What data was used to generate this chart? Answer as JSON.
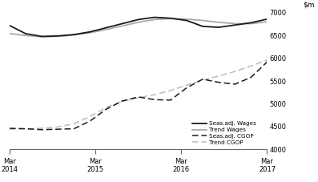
{
  "ylim": [
    4000,
    7000
  ],
  "yticks": [
    4000,
    4500,
    5000,
    5500,
    6000,
    6500,
    7000
  ],
  "xlim": [
    0,
    12
  ],
  "xtick_positions": [
    0,
    4,
    8,
    12
  ],
  "xtick_labels": [
    "Mar\n2014",
    "Mar\n2015",
    "Mar\n2016",
    "Mar\n2017"
  ],
  "seas_adj_wages": [
    6720,
    6540,
    6480,
    6490,
    6520,
    6580,
    6670,
    6760,
    6850,
    6900,
    6880,
    6830,
    6700,
    6680,
    6730,
    6780,
    6860
  ],
  "trend_wages": [
    6540,
    6500,
    6470,
    6480,
    6510,
    6560,
    6630,
    6710,
    6790,
    6850,
    6870,
    6860,
    6830,
    6790,
    6760,
    6760,
    6800
  ],
  "seas_adj_cgop": [
    4460,
    4450,
    4430,
    4440,
    4450,
    4620,
    4880,
    5060,
    5150,
    5090,
    5080,
    5350,
    5540,
    5470,
    5430,
    5580,
    5920
  ],
  "trend_cgop": [
    4440,
    4450,
    4460,
    4490,
    4560,
    4720,
    4920,
    5050,
    5130,
    5200,
    5290,
    5410,
    5520,
    5610,
    5710,
    5830,
    5960
  ],
  "x_vals": [
    0,
    0.75,
    1.5,
    2.25,
    3,
    3.75,
    4.5,
    5.25,
    6,
    6.75,
    7.5,
    8.25,
    9,
    9.75,
    10.5,
    11.25,
    12
  ],
  "color_black": "#1a1a1a",
  "color_gray": "#aaaaaa",
  "color_lgray": "#bbbbbb",
  "background_color": "#ffffff",
  "legend_labels": [
    "Seas.adj. Wages",
    "Trend Wages",
    "Seas.adj. CGOP",
    "Trend CGOP"
  ]
}
